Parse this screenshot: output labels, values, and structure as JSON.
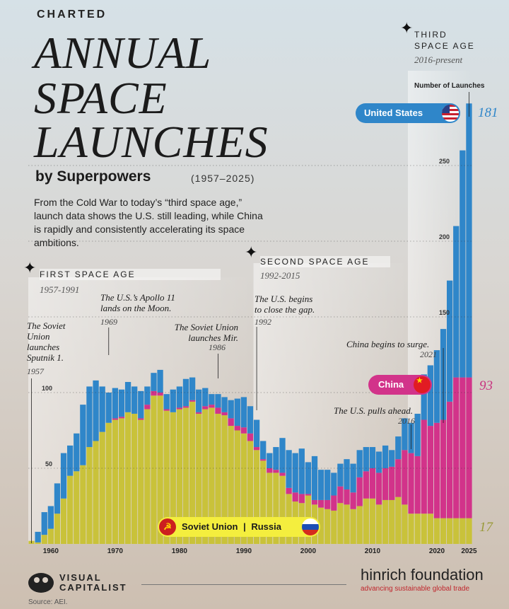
{
  "brand": "CHARTED",
  "title_lines": [
    "ANNUAL",
    "SPACE",
    "LAUNCHES"
  ],
  "subtitle": "by Superpowers",
  "subtitle_years": "(1957–2025)",
  "intro": "From the Cold War to today’s “third space age,” launch data shows the U.S. still leading, while China is rapidly and consistently accelerating its space ambitions.",
  "eras": [
    {
      "label": "FIRST SPACE AGE",
      "years": "1957-1991"
    },
    {
      "label": "SECOND SPACE AGE",
      "years": "1992-2015"
    },
    {
      "label_lines": [
        "THIRD",
        "SPACE AGE"
      ],
      "years": "2016-present"
    }
  ],
  "annotations": [
    {
      "text": [
        "The Soviet",
        "Union",
        "launches",
        "Sputnik 1."
      ],
      "year": "1957"
    },
    {
      "text": [
        "The U.S.’s Apollo 11",
        "lands on the Moon."
      ],
      "year": "1969"
    },
    {
      "text": [
        "The Soviet Union",
        "launches Mir."
      ],
      "year": "1986"
    },
    {
      "text": [
        "The U.S. begins",
        "to close the gap."
      ],
      "year": "1992"
    },
    {
      "text": [
        "China begins to surge."
      ],
      "year": "2021"
    },
    {
      "text": [
        "The U.S. pulls ahead."
      ],
      "year": "2016"
    }
  ],
  "pills": {
    "us": "United States",
    "china": "China",
    "soviet": "Soviet Union",
    "russia": "Russia",
    "separator": "|"
  },
  "axis_title": "Number of Launches",
  "footer": {
    "vc_line1": "VISUAL",
    "vc_line2": "CAPITALIST",
    "hinrich": "hinrich foundation",
    "hinrich_tag": "advancing sustainable global trade",
    "source": "Source: AEI."
  },
  "colors": {
    "us": "#2f86c9",
    "china": "#d2338a",
    "russia": "#c9c23a",
    "accent_text_us": "#2f86c9",
    "accent_text_china": "#c8307f",
    "accent_text_russia": "#9a9a3a"
  },
  "chart_data": {
    "type": "bar",
    "stacked": true,
    "x_start": 1957,
    "ylim": [
      0,
      300
    ],
    "yticks": [
      50,
      100,
      150,
      200,
      250
    ],
    "xticks": [
      1960,
      1970,
      1980,
      1990,
      2000,
      2010,
      2020,
      2025
    ],
    "ylabel": "Number of Launches",
    "series": [
      {
        "name": "Soviet Union | Russia",
        "values": [
          2,
          1,
          6,
          10,
          20,
          30,
          45,
          48,
          52,
          64,
          68,
          74,
          80,
          82,
          83,
          87,
          86,
          82,
          89,
          98,
          98,
          88,
          87,
          89,
          90,
          94,
          86,
          89,
          90,
          86,
          85,
          78,
          75,
          73,
          68,
          62,
          55,
          47,
          47,
          45,
          33,
          28,
          27,
          32,
          26,
          24,
          23,
          22,
          27,
          26,
          23,
          25,
          30,
          30,
          26,
          29,
          29,
          31,
          26,
          20,
          20,
          20,
          20,
          17,
          17,
          17,
          17,
          17,
          17
        ],
        "end_value": "17"
      },
      {
        "name": "China",
        "values": [
          0,
          0,
          0,
          0,
          0,
          0,
          0,
          0,
          0,
          0,
          0,
          0,
          0,
          1,
          1,
          0,
          0,
          1,
          3,
          3,
          2,
          1,
          0,
          1,
          1,
          1,
          1,
          2,
          2,
          4,
          2,
          5,
          3,
          4,
          5,
          2,
          1,
          3,
          2,
          2,
          4,
          6,
          6,
          1,
          3,
          5,
          6,
          10,
          11,
          10,
          11,
          19,
          18,
          20,
          21,
          21,
          22,
          25,
          36,
          40,
          38,
          62,
          58,
          63,
          65,
          77,
          93,
          93,
          93
        ],
        "end_value": "93"
      },
      {
        "name": "United States",
        "values": [
          0,
          7,
          15,
          15,
          20,
          30,
          20,
          25,
          40,
          40,
          40,
          30,
          20,
          20,
          18,
          20,
          18,
          18,
          12,
          12,
          15,
          10,
          15,
          14,
          18,
          15,
          15,
          12,
          7,
          9,
          10,
          12,
          18,
          20,
          18,
          18,
          12,
          10,
          15,
          23,
          25,
          26,
          30,
          21,
          29,
          20,
          20,
          15,
          15,
          20,
          19,
          18,
          16,
          14,
          14,
          15,
          11,
          15,
          21,
          20,
          28,
          30,
          40,
          48,
          60,
          80,
          100,
          150,
          181
        ],
        "end_value": "181"
      }
    ]
  }
}
